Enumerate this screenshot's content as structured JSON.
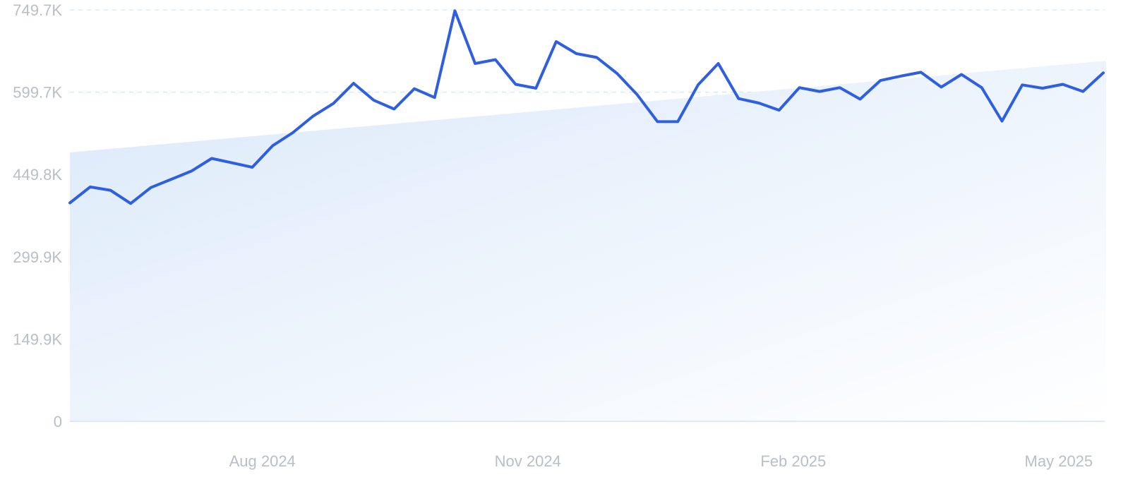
{
  "chart_data": {
    "type": "line",
    "title": "",
    "xlabel": "",
    "ylabel": "",
    "ylim": [
      0,
      749.7
    ],
    "y_unit": "K",
    "grid": true,
    "y_ticks": [
      {
        "value": 0,
        "label": "0"
      },
      {
        "value": 149.9,
        "label": "149.9K"
      },
      {
        "value": 299.9,
        "label": "299.9K"
      },
      {
        "value": 449.8,
        "label": "449.8K"
      },
      {
        "value": 599.7,
        "label": "599.7K"
      },
      {
        "value": 749.7,
        "label": "749.7K"
      }
    ],
    "x_ticks": [
      {
        "label": "Aug 2024",
        "index": 9.5
      },
      {
        "label": "Nov 2024",
        "index": 22.6
      },
      {
        "label": "Feb 2025",
        "index": 35.7
      },
      {
        "label": "May 2025",
        "index": 48.8
      }
    ],
    "series": [
      {
        "values": [
          398,
          427,
          421,
          397,
          426,
          441,
          456,
          479,
          471,
          463,
          502,
          526,
          556,
          579,
          616,
          585,
          569,
          606,
          590,
          748,
          652,
          659,
          614,
          607,
          692,
          670,
          663,
          634,
          595,
          546,
          546,
          613,
          652,
          588,
          580,
          567,
          608,
          601,
          608,
          587,
          621,
          629,
          636,
          609,
          632,
          608,
          547,
          613,
          607,
          614,
          601,
          635
        ]
      }
    ],
    "trend": {
      "start": 490,
      "end": 657
    },
    "colors": {
      "line": "#2f5fe0",
      "area_start": "#dbe9fa",
      "area_end": "#ffffff",
      "grid": "#cfe6f5",
      "tick_text": "#b9bec8"
    }
  }
}
